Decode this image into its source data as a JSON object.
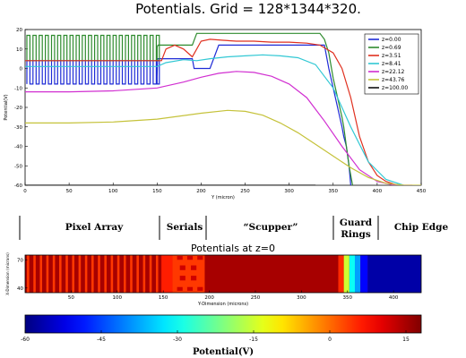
{
  "chart_data": [
    {
      "type": "line",
      "title": "Potentials. Grid = 128*1344*320.",
      "xlabel": "Y (micron)",
      "ylabel": "Potential(V)",
      "xlim": [
        0,
        450
      ],
      "ylim": [
        -60,
        20
      ],
      "xticks": [
        0,
        50,
        100,
        150,
        200,
        250,
        300,
        350,
        400,
        450
      ],
      "yticks": [
        -60,
        -50,
        -40,
        -30,
        -20,
        -10,
        0,
        10,
        20
      ],
      "grid": false,
      "legend_position": "top-right",
      "series": [
        {
          "name": "z=0.00",
          "color": "#1f2bd6",
          "x": [
            0,
            150,
            150.5,
            158,
            165,
            180,
            190,
            192,
            200,
            210,
            220,
            340,
            345,
            350,
            355,
            360,
            362,
            365,
            368,
            370
          ],
          "y": [
            -4,
            -4,
            5,
            5,
            5,
            5,
            5,
            0,
            0,
            0,
            12,
            12,
            0,
            -10,
            -20,
            -30,
            -35,
            -40,
            -50,
            -60
          ],
          "comb": {
            "x0": 2,
            "x1": 150,
            "period": 7,
            "low": -8,
            "high": 4
          }
        },
        {
          "name": "z=0.69",
          "color": "#2e8b2e",
          "x": [
            0,
            150,
            151,
            190,
            195,
            200,
            335,
            340,
            345,
            350,
            355,
            360,
            362,
            365,
            368,
            372
          ],
          "y": [
            11,
            11,
            12,
            12,
            18,
            18,
            18,
            15,
            8,
            -5,
            -15,
            -25,
            -30,
            -40,
            -50,
            -60
          ],
          "comb": {
            "x0": 2,
            "x1": 150,
            "period": 7,
            "low": 4,
            "high": 17
          }
        },
        {
          "name": "z=3.51",
          "color": "#e0301f",
          "x": [
            0,
            150,
            155,
            160,
            170,
            180,
            190,
            195,
            200,
            210,
            225,
            240,
            260,
            280,
            300,
            320,
            335,
            350,
            360,
            370,
            380,
            390,
            400,
            410,
            420,
            425
          ],
          "y": [
            4,
            4,
            4,
            10,
            12,
            10,
            6,
            10,
            14,
            15,
            14.5,
            14,
            14,
            13.5,
            13.5,
            13,
            12,
            8,
            0,
            -15,
            -35,
            -48,
            -55,
            -58,
            -59.5,
            -60
          ]
        },
        {
          "name": "z=8.41",
          "color": "#31c8d4",
          "x": [
            0,
            150,
            160,
            180,
            195,
            210,
            230,
            250,
            270,
            290,
            310,
            330,
            350,
            370,
            390,
            410,
            430
          ],
          "y": [
            1,
            1,
            3,
            4.5,
            4,
            5,
            6,
            6.5,
            7,
            6.5,
            5.5,
            2,
            -10,
            -30,
            -48,
            -57,
            -60
          ]
        },
        {
          "name": "z=22.12",
          "color": "#d12fd1",
          "x": [
            0,
            50,
            100,
            150,
            180,
            200,
            220,
            240,
            260,
            280,
            300,
            320,
            340,
            360,
            380,
            400,
            420,
            440
          ],
          "y": [
            -12,
            -12,
            -11.5,
            -10,
            -7,
            -4.5,
            -2.5,
            -1.5,
            -2,
            -4,
            -8,
            -15,
            -27,
            -40,
            -52,
            -58,
            -60,
            -60
          ]
        },
        {
          "name": "z=43.76",
          "color": "#c5c23a",
          "x": [
            0,
            50,
            100,
            150,
            200,
            230,
            250,
            270,
            290,
            310,
            330,
            350,
            370,
            390,
            410,
            430,
            450
          ],
          "y": [
            -28,
            -28,
            -27.5,
            -26,
            -23,
            -21.5,
            -22,
            -24,
            -28,
            -33,
            -39,
            -45,
            -51,
            -56,
            -59,
            -60,
            -60
          ]
        },
        {
          "name": "z=100.00",
          "color": "#111111",
          "x": [
            0,
            100,
            200,
            300,
            330
          ],
          "y": [
            -60,
            -60,
            -60,
            -60,
            -60
          ]
        }
      ]
    },
    {
      "type": "heatmap",
      "title": "Potentials at z=0",
      "xlabel": "Y-Dimension (microns)",
      "ylabel": "X-Dimension (microns)",
      "xlim": [
        0,
        430
      ],
      "ylim": [
        35,
        75
      ],
      "xticks": [
        50,
        100,
        150,
        200,
        250,
        300,
        350,
        400
      ],
      "yticks": [
        40,
        70
      ],
      "region_labels": [
        "Pixel Array",
        "Serials",
        "“Scupper”",
        "Guard Rings",
        "Chip Edge"
      ],
      "region_label_lines": [
        [
          "Pixel Array"
        ],
        [
          "Serials"
        ],
        [
          "“Scupper”"
        ],
        [
          "Guard",
          "Rings"
        ],
        [
          "Chip Edge"
        ]
      ],
      "background_potential": 15,
      "stripes": {
        "x0": 2,
        "x1": 148,
        "period": 7,
        "width": 2.5,
        "potential": 4
      },
      "blocks": [
        {
          "x0": 148,
          "x1": 160,
          "y0": 35,
          "y1": 75,
          "potential": 6
        },
        {
          "x0": 160,
          "x1": 195,
          "y0": 35,
          "y1": 75,
          "potential": 4
        },
        {
          "x0": 165,
          "x1": 171,
          "y0": 70,
          "y1": 74,
          "potential": 12
        },
        {
          "x0": 176,
          "x1": 182,
          "y0": 70,
          "y1": 74,
          "potential": 12
        },
        {
          "x0": 187,
          "x1": 193,
          "y0": 70,
          "y1": 74,
          "potential": 12
        },
        {
          "x0": 168,
          "x1": 174,
          "y0": 59,
          "y1": 64,
          "potential": 12
        },
        {
          "x0": 180,
          "x1": 186,
          "y0": 59,
          "y1": 64,
          "potential": 12
        },
        {
          "x0": 168,
          "x1": 174,
          "y0": 48,
          "y1": 53,
          "potential": 12
        },
        {
          "x0": 180,
          "x1": 186,
          "y0": 48,
          "y1": 53,
          "potential": 12
        },
        {
          "x0": 165,
          "x1": 171,
          "y0": 37,
          "y1": 41,
          "potential": 12
        },
        {
          "x0": 176,
          "x1": 182,
          "y0": 37,
          "y1": 41,
          "potential": 12
        },
        {
          "x0": 187,
          "x1": 193,
          "y0": 37,
          "y1": 41,
          "potential": 12
        },
        {
          "x0": 340,
          "x1": 346,
          "y0": 35,
          "y1": 75,
          "potential": 5
        },
        {
          "x0": 346,
          "x1": 352,
          "y0": 35,
          "y1": 75,
          "potential": -15
        },
        {
          "x0": 352,
          "x1": 358,
          "y0": 35,
          "y1": 75,
          "potential": -30
        },
        {
          "x0": 358,
          "x1": 364,
          "y0": 35,
          "y1": 75,
          "potential": -38
        },
        {
          "x0": 364,
          "x1": 372,
          "y0": 35,
          "y1": 75,
          "potential": -50
        },
        {
          "x0": 372,
          "x1": 430,
          "y0": 35,
          "y1": 75,
          "potential": -57
        }
      ]
    },
    {
      "type": "colorbar",
      "label": "Potential(V)",
      "range": [
        -60,
        18
      ],
      "ticks": [
        -60,
        -45,
        -30,
        -15,
        0,
        15
      ],
      "colormap": "jet"
    }
  ]
}
